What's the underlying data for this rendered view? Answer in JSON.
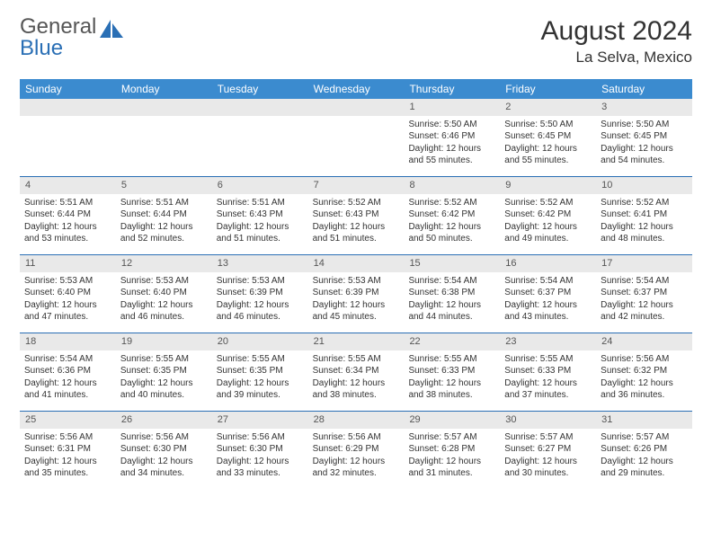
{
  "logo": {
    "word1": "General",
    "word2": "Blue"
  },
  "header": {
    "title": "August 2024",
    "location": "La Selva, Mexico"
  },
  "colors": {
    "header_bg": "#3b8bcf",
    "rule": "#2a6fb5",
    "daynum_bg": "#e9e9e9",
    "text": "#333333",
    "logo_gray": "#555555",
    "logo_blue": "#2a6fb5",
    "bg": "#ffffff"
  },
  "daynames": [
    "Sunday",
    "Monday",
    "Tuesday",
    "Wednesday",
    "Thursday",
    "Friday",
    "Saturday"
  ],
  "weeks": [
    [
      {
        "n": "",
        "sr": "",
        "ss": "",
        "dl": ""
      },
      {
        "n": "",
        "sr": "",
        "ss": "",
        "dl": ""
      },
      {
        "n": "",
        "sr": "",
        "ss": "",
        "dl": ""
      },
      {
        "n": "",
        "sr": "",
        "ss": "",
        "dl": ""
      },
      {
        "n": "1",
        "sr": "Sunrise: 5:50 AM",
        "ss": "Sunset: 6:46 PM",
        "dl": "Daylight: 12 hours and 55 minutes."
      },
      {
        "n": "2",
        "sr": "Sunrise: 5:50 AM",
        "ss": "Sunset: 6:45 PM",
        "dl": "Daylight: 12 hours and 55 minutes."
      },
      {
        "n": "3",
        "sr": "Sunrise: 5:50 AM",
        "ss": "Sunset: 6:45 PM",
        "dl": "Daylight: 12 hours and 54 minutes."
      }
    ],
    [
      {
        "n": "4",
        "sr": "Sunrise: 5:51 AM",
        "ss": "Sunset: 6:44 PM",
        "dl": "Daylight: 12 hours and 53 minutes."
      },
      {
        "n": "5",
        "sr": "Sunrise: 5:51 AM",
        "ss": "Sunset: 6:44 PM",
        "dl": "Daylight: 12 hours and 52 minutes."
      },
      {
        "n": "6",
        "sr": "Sunrise: 5:51 AM",
        "ss": "Sunset: 6:43 PM",
        "dl": "Daylight: 12 hours and 51 minutes."
      },
      {
        "n": "7",
        "sr": "Sunrise: 5:52 AM",
        "ss": "Sunset: 6:43 PM",
        "dl": "Daylight: 12 hours and 51 minutes."
      },
      {
        "n": "8",
        "sr": "Sunrise: 5:52 AM",
        "ss": "Sunset: 6:42 PM",
        "dl": "Daylight: 12 hours and 50 minutes."
      },
      {
        "n": "9",
        "sr": "Sunrise: 5:52 AM",
        "ss": "Sunset: 6:42 PM",
        "dl": "Daylight: 12 hours and 49 minutes."
      },
      {
        "n": "10",
        "sr": "Sunrise: 5:52 AM",
        "ss": "Sunset: 6:41 PM",
        "dl": "Daylight: 12 hours and 48 minutes."
      }
    ],
    [
      {
        "n": "11",
        "sr": "Sunrise: 5:53 AM",
        "ss": "Sunset: 6:40 PM",
        "dl": "Daylight: 12 hours and 47 minutes."
      },
      {
        "n": "12",
        "sr": "Sunrise: 5:53 AM",
        "ss": "Sunset: 6:40 PM",
        "dl": "Daylight: 12 hours and 46 minutes."
      },
      {
        "n": "13",
        "sr": "Sunrise: 5:53 AM",
        "ss": "Sunset: 6:39 PM",
        "dl": "Daylight: 12 hours and 46 minutes."
      },
      {
        "n": "14",
        "sr": "Sunrise: 5:53 AM",
        "ss": "Sunset: 6:39 PM",
        "dl": "Daylight: 12 hours and 45 minutes."
      },
      {
        "n": "15",
        "sr": "Sunrise: 5:54 AM",
        "ss": "Sunset: 6:38 PM",
        "dl": "Daylight: 12 hours and 44 minutes."
      },
      {
        "n": "16",
        "sr": "Sunrise: 5:54 AM",
        "ss": "Sunset: 6:37 PM",
        "dl": "Daylight: 12 hours and 43 minutes."
      },
      {
        "n": "17",
        "sr": "Sunrise: 5:54 AM",
        "ss": "Sunset: 6:37 PM",
        "dl": "Daylight: 12 hours and 42 minutes."
      }
    ],
    [
      {
        "n": "18",
        "sr": "Sunrise: 5:54 AM",
        "ss": "Sunset: 6:36 PM",
        "dl": "Daylight: 12 hours and 41 minutes."
      },
      {
        "n": "19",
        "sr": "Sunrise: 5:55 AM",
        "ss": "Sunset: 6:35 PM",
        "dl": "Daylight: 12 hours and 40 minutes."
      },
      {
        "n": "20",
        "sr": "Sunrise: 5:55 AM",
        "ss": "Sunset: 6:35 PM",
        "dl": "Daylight: 12 hours and 39 minutes."
      },
      {
        "n": "21",
        "sr": "Sunrise: 5:55 AM",
        "ss": "Sunset: 6:34 PM",
        "dl": "Daylight: 12 hours and 38 minutes."
      },
      {
        "n": "22",
        "sr": "Sunrise: 5:55 AM",
        "ss": "Sunset: 6:33 PM",
        "dl": "Daylight: 12 hours and 38 minutes."
      },
      {
        "n": "23",
        "sr": "Sunrise: 5:55 AM",
        "ss": "Sunset: 6:33 PM",
        "dl": "Daylight: 12 hours and 37 minutes."
      },
      {
        "n": "24",
        "sr": "Sunrise: 5:56 AM",
        "ss": "Sunset: 6:32 PM",
        "dl": "Daylight: 12 hours and 36 minutes."
      }
    ],
    [
      {
        "n": "25",
        "sr": "Sunrise: 5:56 AM",
        "ss": "Sunset: 6:31 PM",
        "dl": "Daylight: 12 hours and 35 minutes."
      },
      {
        "n": "26",
        "sr": "Sunrise: 5:56 AM",
        "ss": "Sunset: 6:30 PM",
        "dl": "Daylight: 12 hours and 34 minutes."
      },
      {
        "n": "27",
        "sr": "Sunrise: 5:56 AM",
        "ss": "Sunset: 6:30 PM",
        "dl": "Daylight: 12 hours and 33 minutes."
      },
      {
        "n": "28",
        "sr": "Sunrise: 5:56 AM",
        "ss": "Sunset: 6:29 PM",
        "dl": "Daylight: 12 hours and 32 minutes."
      },
      {
        "n": "29",
        "sr": "Sunrise: 5:57 AM",
        "ss": "Sunset: 6:28 PM",
        "dl": "Daylight: 12 hours and 31 minutes."
      },
      {
        "n": "30",
        "sr": "Sunrise: 5:57 AM",
        "ss": "Sunset: 6:27 PM",
        "dl": "Daylight: 12 hours and 30 minutes."
      },
      {
        "n": "31",
        "sr": "Sunrise: 5:57 AM",
        "ss": "Sunset: 6:26 PM",
        "dl": "Daylight: 12 hours and 29 minutes."
      }
    ]
  ]
}
